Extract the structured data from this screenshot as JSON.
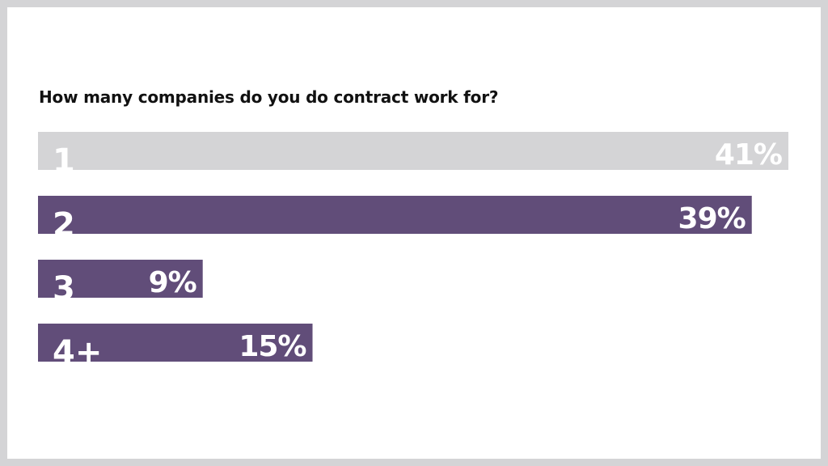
{
  "chart_data": {
    "type": "bar",
    "orientation": "horizontal",
    "title": "How many companies do you do contract work for?",
    "categories": [
      "1",
      "2",
      "3",
      "4+"
    ],
    "values": [
      41,
      39,
      9,
      15
    ],
    "value_labels": [
      "41%",
      "39%",
      "9%",
      "15%"
    ],
    "xlabel": "",
    "ylabel": "",
    "xlim": [
      0,
      41
    ],
    "grid": false,
    "legend": "none",
    "colors": {
      "highlight": "#d4d4d6",
      "bar": "#614d79",
      "label": "#ffffff"
    }
  }
}
